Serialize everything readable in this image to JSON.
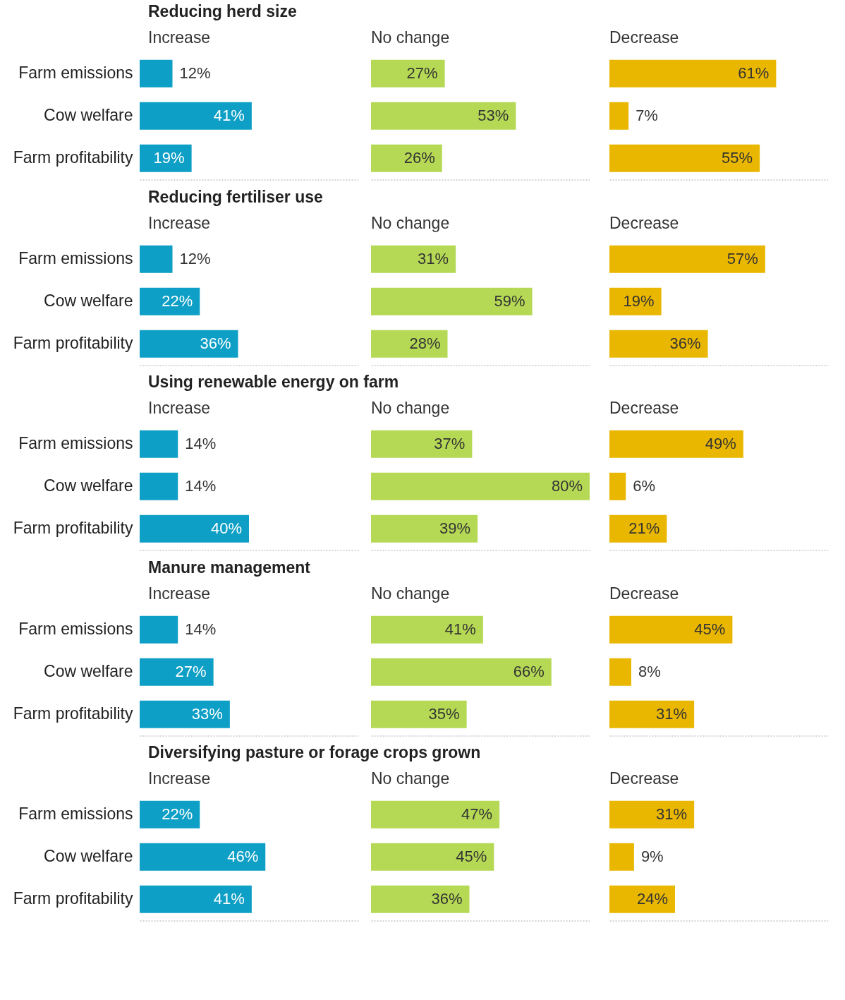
{
  "chart_data": [
    {
      "type": "bar",
      "orientation": "horizontal",
      "title": "Reducing herd size",
      "categories": [
        "Farm emissions",
        "Cow welfare",
        "Farm profitability"
      ],
      "xlim": [
        0,
        80
      ],
      "tick_labels": "y",
      "series": [
        {
          "name": "Increase",
          "color": "#0e9fc6",
          "values": [
            12,
            41,
            19
          ],
          "value_labels": [
            "12%",
            "41%",
            "19%"
          ]
        }
      ]
    },
    {
      "type": "bar",
      "orientation": "horizontal",
      "categories": [
        null,
        null,
        null
      ],
      "xlim": [
        0,
        80
      ],
      "tick_labels": false,
      "series": [
        {
          "name": "No change",
          "color": "#b5d955",
          "values": [
            27,
            53,
            26
          ],
          "value_labels": [
            "27%",
            "53%",
            "26%"
          ]
        }
      ]
    },
    {
      "type": "bar",
      "orientation": "horizontal",
      "categories": [
        null,
        null,
        null
      ],
      "xlim": [
        0,
        80
      ],
      "tick_labels": false,
      "series": [
        {
          "name": "Decrease",
          "color": "#e9b700",
          "values": [
            61,
            7,
            55
          ],
          "value_labels": [
            "61%",
            "7%",
            "55%"
          ]
        }
      ]
    },
    {
      "type": "bar",
      "orientation": "horizontal",
      "title": "Reducing fertiliser use",
      "categories": [
        "Farm emissions",
        "Cow welfare",
        "Farm profitability"
      ],
      "xlim": [
        0,
        80
      ],
      "tick_labels": "y",
      "series": [
        {
          "name": "Increase",
          "color": "#0e9fc6",
          "values": [
            12,
            22,
            36
          ],
          "value_labels": [
            "12%",
            "22%",
            "36%"
          ]
        }
      ]
    },
    {
      "type": "bar",
      "orientation": "horizontal",
      "categories": [
        null,
        null,
        null
      ],
      "xlim": [
        0,
        80
      ],
      "tick_labels": false,
      "series": [
        {
          "name": "No change",
          "color": "#b5d955",
          "values": [
            31,
            59,
            28
          ],
          "value_labels": [
            "31%",
            "59%",
            "28%"
          ]
        }
      ]
    },
    {
      "type": "bar",
      "orientation": "horizontal",
      "categories": [
        null,
        null,
        null
      ],
      "xlim": [
        0,
        80
      ],
      "tick_labels": false,
      "series": [
        {
          "name": "Decrease",
          "color": "#e9b700",
          "values": [
            57,
            19,
            36
          ],
          "value_labels": [
            "57%",
            "19%",
            "36%"
          ]
        }
      ]
    },
    {
      "type": "bar",
      "orientation": "horizontal",
      "title": "Using renewable energy on farm",
      "categories": [
        "Farm emissions",
        "Cow welfare",
        "Farm profitability"
      ],
      "xlim": [
        0,
        80
      ],
      "tick_labels": "y",
      "series": [
        {
          "name": "Increase",
          "color": "#0e9fc6",
          "values": [
            14,
            14,
            40
          ],
          "value_labels": [
            "14%",
            "14%",
            "40%"
          ]
        }
      ]
    },
    {
      "type": "bar",
      "orientation": "horizontal",
      "categories": [
        null,
        null,
        null
      ],
      "xlim": [
        0,
        80
      ],
      "tick_labels": false,
      "series": [
        {
          "name": "No change",
          "color": "#b5d955",
          "values": [
            37,
            80,
            39
          ],
          "value_labels": [
            "37%",
            "80%",
            "39%"
          ]
        }
      ]
    },
    {
      "type": "bar",
      "orientation": "horizontal",
      "categories": [
        null,
        null,
        null
      ],
      "xlim": [
        0,
        80
      ],
      "tick_labels": false,
      "series": [
        {
          "name": "Decrease",
          "color": "#e9b700",
          "values": [
            49,
            6,
            21
          ],
          "value_labels": [
            "49%",
            "6%",
            "21%"
          ]
        }
      ]
    },
    {
      "type": "bar",
      "orientation": "horizontal",
      "title": "Manure management",
      "categories": [
        "Farm emissions",
        "Cow welfare",
        "Farm profitability"
      ],
      "xlim": [
        0,
        80
      ],
      "tick_labels": "y",
      "series": [
        {
          "name": "Increase",
          "color": "#0e9fc6",
          "values": [
            14,
            27,
            33
          ],
          "value_labels": [
            "14%",
            "27%",
            "33%"
          ]
        }
      ]
    },
    {
      "type": "bar",
      "orientation": "horizontal",
      "categories": [
        null,
        null,
        null
      ],
      "xlim": [
        0,
        80
      ],
      "tick_labels": false,
      "series": [
        {
          "name": "No change",
          "color": "#b5d955",
          "values": [
            41,
            66,
            35
          ],
          "value_labels": [
            "41%",
            "66%",
            "35%"
          ]
        }
      ]
    },
    {
      "type": "bar",
      "orientation": "horizontal",
      "categories": [
        null,
        null,
        null
      ],
      "xlim": [
        0,
        80
      ],
      "tick_labels": false,
      "series": [
        {
          "name": "Decrease",
          "color": "#e9b700",
          "values": [
            45,
            8,
            31
          ],
          "value_labels": [
            "45%",
            "8%",
            "31%"
          ]
        }
      ]
    },
    {
      "type": "bar",
      "orientation": "horizontal",
      "title": "Diversifying pasture or forage crops grown",
      "categories": [
        "Farm emissions",
        "Cow welfare",
        "Farm profitability"
      ],
      "xlim": [
        0,
        80
      ],
      "tick_labels": "y",
      "series": [
        {
          "name": "Increase",
          "color": "#0e9fc6",
          "values": [
            22,
            46,
            41
          ],
          "value_labels": [
            "22%",
            "46%",
            "41%"
          ]
        }
      ]
    },
    {
      "type": "bar",
      "orientation": "horizontal",
      "categories": [
        null,
        null,
        null
      ],
      "xlim": [
        0,
        80
      ],
      "tick_labels": false,
      "series": [
        {
          "name": "No change",
          "color": "#b5d955",
          "values": [
            47,
            45,
            36
          ],
          "value_labels": [
            "47%",
            "45%",
            "36%"
          ]
        }
      ]
    },
    {
      "type": "bar",
      "orientation": "horizontal",
      "categories": [
        null,
        null,
        null
      ],
      "xlim": [
        0,
        80
      ],
      "tick_labels": false,
      "series": [
        {
          "name": "Decrease",
          "color": "#e9b700",
          "values": [
            31,
            9,
            24
          ],
          "value_labels": [
            "31%",
            "9%",
            "24%"
          ]
        }
      ]
    }
  ]
}
